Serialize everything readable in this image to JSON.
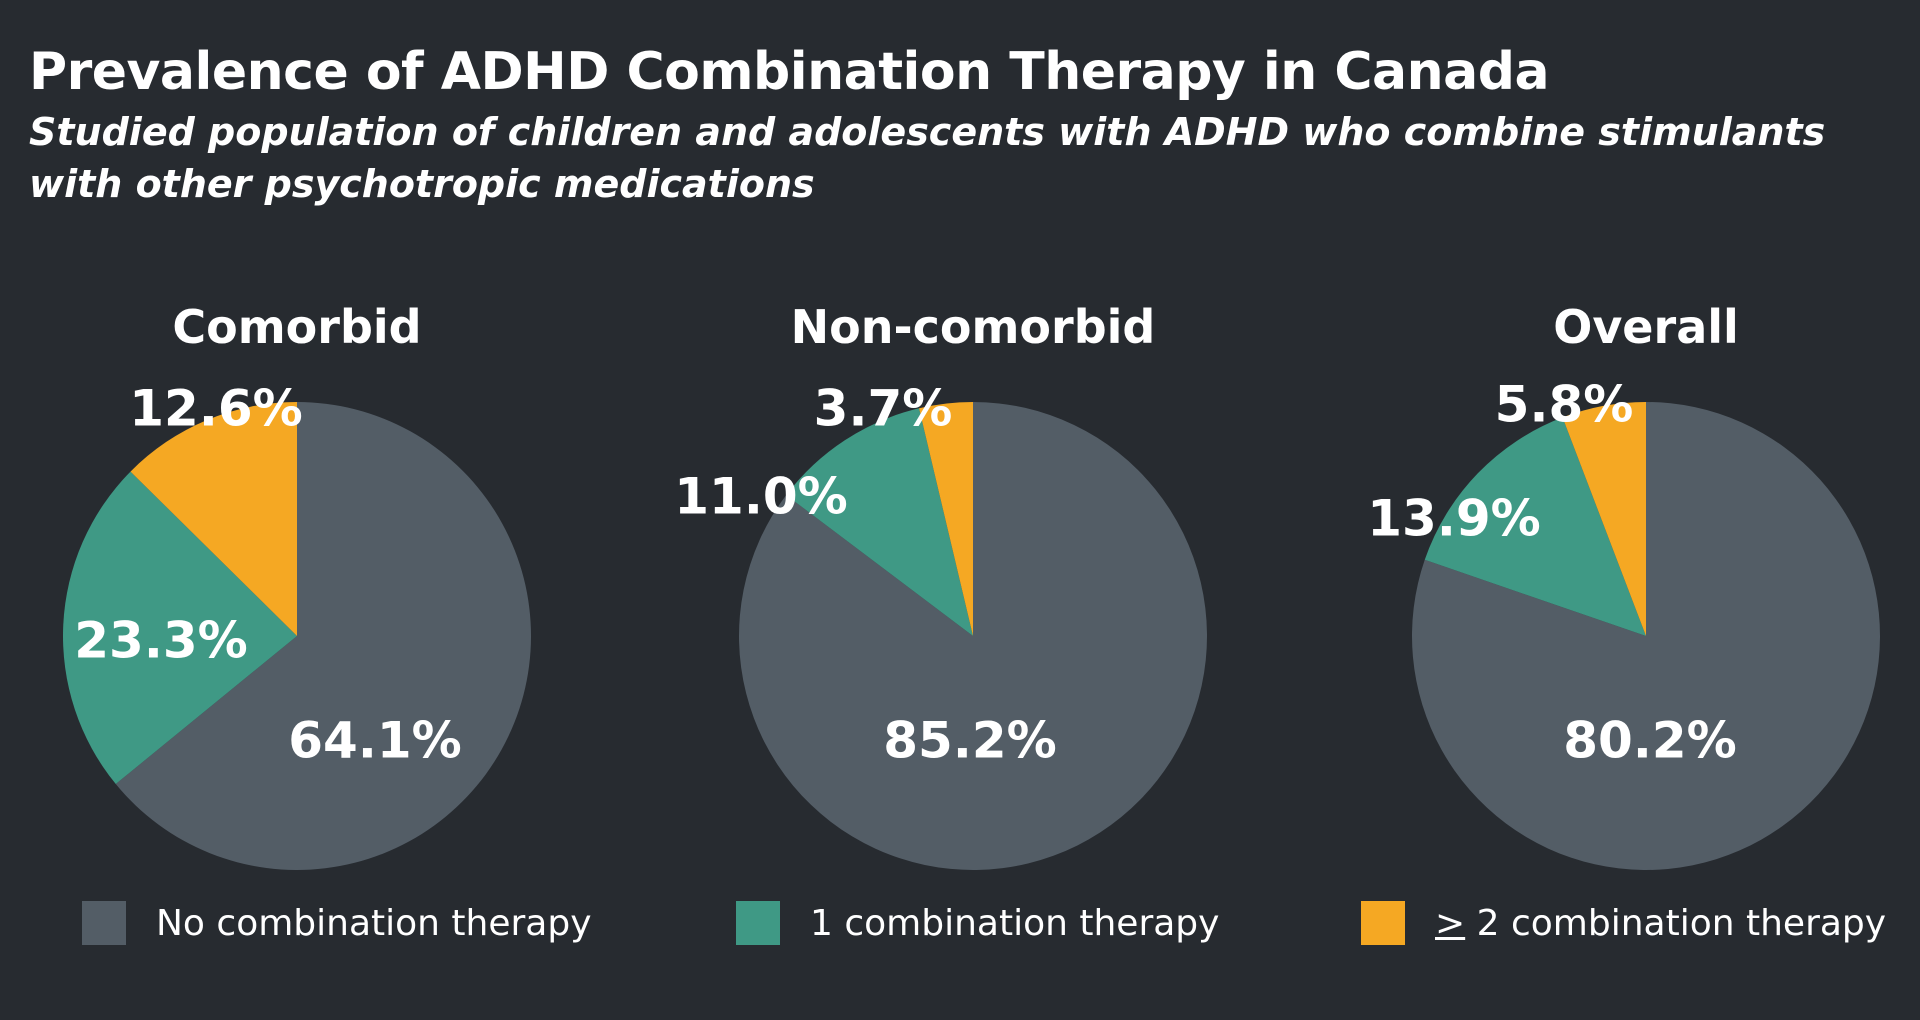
{
  "title": "Prevalence of ADHD Combination Therapy in Canada",
  "subtitle": "Studied population of children and adolescents with ADHD who combine stimulants with other psychotropic medications",
  "colors": {
    "background": "#272b30",
    "no_combination": "#535d66",
    "one_combination": "#3f9985",
    "two_plus_combination": "#f5a823",
    "text": "#ffffff"
  },
  "legend": [
    {
      "symbol": "",
      "label": "No combination therapy",
      "color_key": "no_combination"
    },
    {
      "symbol": "",
      "label": "1 combination therapy",
      "color_key": "one_combination"
    },
    {
      "symbol": ">",
      "label": " 2 combination therapy",
      "color_key": "two_plus_combination"
    }
  ],
  "chart_data": [
    {
      "type": "pie",
      "title": "Comorbid",
      "categories": [
        "No combination therapy",
        "1 combination therapy",
        "≥ 2 combination therapy"
      ],
      "values": [
        64.1,
        23.3,
        12.6
      ],
      "labels": [
        "64.1%",
        "23.3%",
        "12.6%"
      ],
      "start": "12 o'clock",
      "direction": "clockwise"
    },
    {
      "type": "pie",
      "title": "Non-comorbid",
      "categories": [
        "No combination therapy",
        "1 combination therapy",
        "≥ 2 combination therapy"
      ],
      "values": [
        85.2,
        11.0,
        3.7
      ],
      "labels": [
        "85.2%",
        "11.0%",
        "3.7%"
      ],
      "start": "12 o'clock",
      "direction": "clockwise"
    },
    {
      "type": "pie",
      "title": "Overall",
      "categories": [
        "No combination therapy",
        "1 combination therapy",
        "≥ 2 combination therapy"
      ],
      "values": [
        80.2,
        13.9,
        5.8
      ],
      "labels": [
        "80.2%",
        "13.9%",
        "5.8%"
      ],
      "start": "12 o'clock",
      "direction": "clockwise"
    }
  ]
}
